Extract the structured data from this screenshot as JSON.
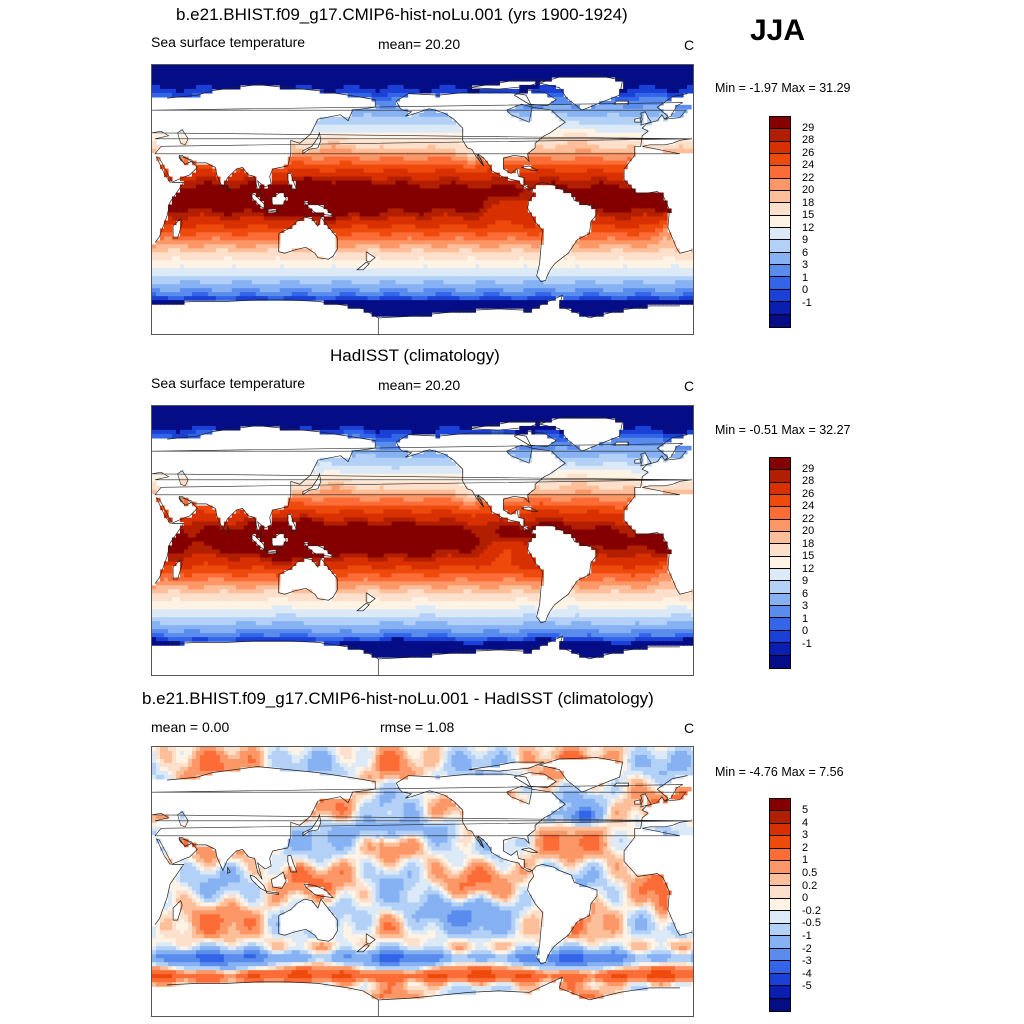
{
  "season": "JJA",
  "colors": {
    "sst": [
      "#840000",
      "#b21e00",
      "#d83000",
      "#ee4a0c",
      "#fb6c36",
      "#fc9767",
      "#fdbf9a",
      "#fde0cb",
      "#fff3e5",
      "#dceaf8",
      "#b3d1f7",
      "#86b1f2",
      "#5a8cee",
      "#3265e8",
      "#1a40d6",
      "#0a1fb0",
      "#050d86"
    ],
    "diff": [
      "#840000",
      "#b21e00",
      "#d83000",
      "#ee4a0c",
      "#fb6c36",
      "#fc9767",
      "#fdbf9a",
      "#fde0cb",
      "#fff3e5",
      "#dceaf8",
      "#b3d1f7",
      "#86b1f2",
      "#5a8cee",
      "#3265e8",
      "#1a40d6",
      "#0a1fb0",
      "#050d86"
    ],
    "land": "#ffffff"
  },
  "panels": [
    {
      "title": "b.e21.BHIST.f09_g17.CMIP6-hist-noLu.001 (yrs 1900-1924)",
      "left_label": "Sea surface temperature",
      "mid_label": "mean=  20.20",
      "units": "C",
      "minmax": "Min =  -1.97 Max =  31.29",
      "field": "sst_model",
      "colorbar_labels": [
        "29",
        "28",
        "26",
        "24",
        "22",
        "20",
        "18",
        "15",
        "12",
        "9",
        "6",
        "3",
        "1",
        "0",
        "-1"
      ]
    },
    {
      "title": "HadISST (climatology)",
      "left_label": "Sea surface temperature",
      "mid_label": "mean=  20.20",
      "units": "C",
      "minmax": "Min =  -0.51 Max =  32.27",
      "field": "sst_obs",
      "colorbar_labels": [
        "29",
        "28",
        "26",
        "24",
        "22",
        "20",
        "18",
        "15",
        "12",
        "9",
        "6",
        "3",
        "1",
        "0",
        "-1"
      ]
    },
    {
      "title": "b.e21.BHIST.f09_g17.CMIP6-hist-noLu.001 - HadISST (climatology)",
      "left_label": "mean =   0.00",
      "mid_label": "rmse =   1.08",
      "units": "C",
      "minmax": "Min = -4.76 Max =   7.56",
      "field": "diff",
      "colorbar_labels": [
        "5",
        "4",
        "3",
        "2",
        "1",
        "0.5",
        "0.2",
        "0",
        "-0.2",
        "-0.5",
        "-1",
        "-2",
        "-3",
        "-4",
        "-5"
      ]
    }
  ]
}
